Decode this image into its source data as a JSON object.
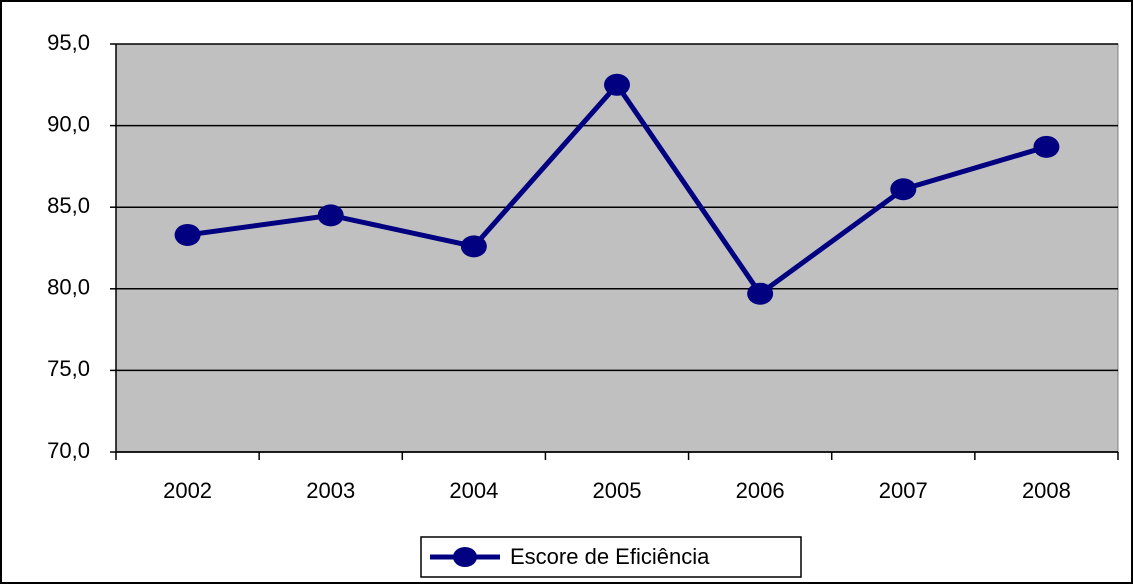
{
  "chart_data": {
    "type": "line",
    "categories": [
      "2002",
      "2003",
      "2004",
      "2005",
      "2006",
      "2007",
      "2008"
    ],
    "series": [
      {
        "name": "Escore de Eficiência",
        "color": "#000080",
        "values": [
          83.3,
          84.5,
          82.6,
          92.5,
          79.7,
          86.1,
          88.7
        ]
      }
    ],
    "ylim": [
      70,
      95
    ],
    "yticks": [
      {
        "value": 70,
        "label": "70,0"
      },
      {
        "value": 75,
        "label": "75,0"
      },
      {
        "value": 80,
        "label": "80,0"
      },
      {
        "value": 85,
        "label": "85,0"
      },
      {
        "value": 90,
        "label": "90,0"
      },
      {
        "value": 95,
        "label": "95,0"
      }
    ],
    "grid": true,
    "legend": "bottom"
  }
}
